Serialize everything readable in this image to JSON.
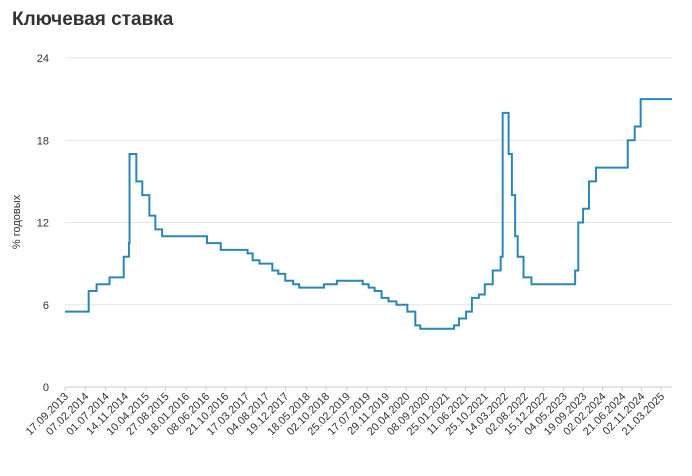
{
  "chart_data": {
    "type": "step-line",
    "title": "Ключевая ставка",
    "ylabel": "% годовых",
    "x": [
      "17.09.2013",
      "03.03.2014",
      "28.04.2014",
      "28.07.2014",
      "05.11.2014",
      "12.12.2014",
      "16.12.2014",
      "02.02.2015",
      "16.03.2015",
      "05.05.2015",
      "16.06.2015",
      "03.08.2015",
      "14.06.2016",
      "19.09.2016",
      "27.03.2017",
      "02.05.2017",
      "19.06.2017",
      "18.09.2017",
      "30.10.2017",
      "18.12.2017",
      "12.02.2018",
      "26.03.2018",
      "17.09.2018",
      "17.12.2018",
      "17.06.2019",
      "29.07.2019",
      "09.09.2019",
      "28.10.2019",
      "16.12.2019",
      "10.02.2020",
      "27.04.2020",
      "22.06.2020",
      "27.07.2020",
      "22.03.2021",
      "26.04.2021",
      "15.06.2021",
      "26.07.2021",
      "13.09.2021",
      "25.10.2021",
      "20.12.2021",
      "14.02.2022",
      "28.02.2022",
      "11.04.2022",
      "04.05.2022",
      "27.05.2022",
      "14.06.2022",
      "25.07.2022",
      "19.09.2022",
      "24.07.2023",
      "15.08.2023",
      "18.09.2023",
      "30.10.2023",
      "18.12.2023",
      "29.07.2024",
      "16.09.2024",
      "28.10.2024",
      "06.06.2025"
    ],
    "series": [
      {
        "name": "Ключевая ставка",
        "color": "#2a86b8",
        "values": [
          5.5,
          7,
          7.5,
          8,
          9.5,
          10.5,
          17,
          15,
          14,
          12.5,
          11.5,
          11,
          10.5,
          10,
          9.75,
          9.25,
          9,
          8.5,
          8.25,
          7.75,
          7.5,
          7.25,
          7.5,
          7.75,
          7.5,
          7.25,
          7,
          6.5,
          6.25,
          6,
          5.5,
          4.5,
          4.25,
          4.5,
          5,
          5.5,
          6.5,
          6.75,
          7.5,
          8.5,
          9.5,
          20,
          17,
          14,
          11,
          9.5,
          8,
          7.5,
          8.5,
          12,
          13,
          15,
          16,
          18,
          19,
          21,
          21
        ]
      }
    ],
    "xlim": [
      "17.09.2013",
      "06.06.2025"
    ],
    "xticks": [
      "17.09.2013",
      "07.02.2014",
      "01.07.2014",
      "14.11.2014",
      "10.04.2015",
      "27.08.2015",
      "18.01.2016",
      "08.06.2016",
      "21.10.2016",
      "17.03.2017",
      "04.08.2017",
      "19.12.2017",
      "18.05.2018",
      "02.10.2018",
      "25.02.2019",
      "17.07.2019",
      "29.11.2019",
      "20.04.2020",
      "08.09.2020",
      "25.01.2021",
      "11.06.2021",
      "25.10.2021",
      "14.03.2022",
      "02.08.2022",
      "15.12.2022",
      "04.05.2023",
      "19.09.2023",
      "02.02.2024",
      "21.06.2024",
      "02.11.2024",
      "21.03.2025"
    ],
    "ylim": [
      0,
      24
    ],
    "yticks": [
      0,
      6,
      12,
      18,
      24
    ],
    "grid": true
  }
}
